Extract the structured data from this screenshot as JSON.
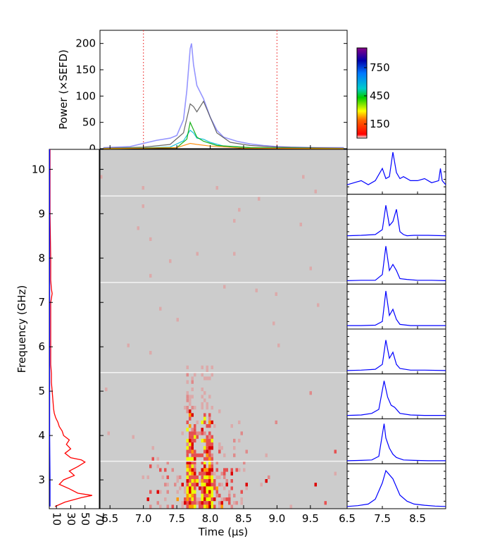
{
  "chart_data": [
    {
      "type": "line",
      "panel": "top-power",
      "ylabel": "Power (×SEFD)",
      "ylim": [
        0,
        225
      ],
      "xlim": [
        6.35,
        10.05
      ],
      "yticks": [
        "0",
        "50",
        "100",
        "150",
        "200"
      ],
      "ytick_values": [
        0,
        50,
        100,
        150,
        200
      ],
      "markers": [
        {
          "x": 7.0,
          "style": "red dotted"
        },
        {
          "x": 9.0,
          "style": "red dotted"
        }
      ],
      "series": [
        {
          "color": "#7b7bff",
          "x": [
            6.4,
            6.6,
            6.8,
            7.0,
            7.2,
            7.4,
            7.5,
            7.6,
            7.65,
            7.7,
            7.72,
            7.75,
            7.8,
            7.9,
            8.0,
            8.1,
            8.2,
            8.4,
            8.6,
            8.8,
            9.0,
            9.2,
            9.6,
            10.0
          ],
          "y": [
            2,
            3,
            4,
            10,
            16,
            20,
            25,
            55,
            110,
            190,
            200,
            160,
            120,
            95,
            60,
            35,
            22,
            14,
            9,
            6,
            4,
            3,
            2,
            2
          ]
        },
        {
          "color": "#555555",
          "x": [
            6.4,
            7.0,
            7.4,
            7.6,
            7.7,
            7.75,
            7.8,
            7.9,
            8.0,
            8.1,
            8.3,
            8.6,
            9.0,
            10.0
          ],
          "y": [
            1,
            3,
            8,
            30,
            85,
            80,
            70,
            90,
            60,
            30,
            12,
            6,
            3,
            1
          ]
        },
        {
          "color": "#00bcd4",
          "x": [
            6.4,
            7.4,
            7.6,
            7.7,
            7.75,
            7.8,
            7.9,
            8.0,
            8.2,
            8.6,
            10.0
          ],
          "y": [
            0,
            3,
            15,
            35,
            30,
            20,
            18,
            12,
            5,
            2,
            0
          ]
        },
        {
          "color": "#00aa00",
          "x": [
            6.4,
            7.5,
            7.65,
            7.7,
            7.8,
            7.9,
            8.1,
            8.6,
            10.0
          ],
          "y": [
            0,
            2,
            18,
            50,
            22,
            14,
            6,
            2,
            0
          ]
        },
        {
          "color": "#ff8800",
          "x": [
            6.4,
            7.5,
            7.7,
            7.8,
            8.0,
            8.5,
            10.0
          ],
          "y": [
            0,
            2,
            10,
            8,
            5,
            1,
            0
          ]
        }
      ]
    },
    {
      "type": "heatmap",
      "panel": "dynamic-spectrum",
      "xlabel": "Time (μs)",
      "ylabel": "Frequency (GHz)",
      "xlim": [
        6.35,
        10.05
      ],
      "ylim": [
        2.35,
        10.45
      ],
      "xticks": [
        "6.5",
        "7.0",
        "7.5",
        "8.0",
        "8.5",
        "9.0",
        "9.5"
      ],
      "xtick_values": [
        6.5,
        7.0,
        7.5,
        8.0,
        8.5,
        9.0,
        9.5
      ],
      "yticks": [
        "3",
        "4",
        "5",
        "6",
        "7",
        "8",
        "9",
        "10"
      ],
      "ytick_values": [
        3,
        4,
        5,
        6,
        7,
        8,
        9,
        10
      ],
      "background": "#cccccc",
      "pulse_components_us": [
        7.72,
        7.97
      ],
      "dead_channels_ghz": [
        9.4,
        7.45,
        5.42,
        3.42
      ],
      "dense_region": {
        "time_us": [
          7.6,
          8.1
        ],
        "freq_ghz": [
          2.4,
          5.4
        ]
      }
    },
    {
      "type": "colorbar",
      "panel": "colorbar",
      "range": [
        0,
        960
      ],
      "ticks": [
        "150",
        "450",
        "750"
      ],
      "tick_values": [
        150,
        450,
        750
      ],
      "colors": [
        "#ff0000",
        "#ffff00",
        "#00cc00",
        "#00ffff",
        "#0000ff",
        "#800080"
      ]
    },
    {
      "type": "line",
      "panel": "left-spectrum",
      "orientation": "vertical",
      "xlim": [
        0,
        70
      ],
      "xticks": [
        "10",
        "30",
        "50",
        "70"
      ],
      "xtick_values": [
        10,
        30,
        50,
        70
      ],
      "ylim": [
        2.35,
        10.45
      ],
      "series": [
        {
          "color": "#ff0000",
          "freq": [
            2.4,
            2.5,
            2.6,
            2.65,
            2.7,
            2.8,
            2.9,
            3.0,
            3.1,
            3.2,
            3.3,
            3.4,
            3.45,
            3.5,
            3.6,
            3.7,
            3.8,
            3.9,
            4.0,
            4.1,
            4.2,
            4.3,
            4.4,
            4.5,
            4.6,
            4.8,
            5.0,
            5.2,
            5.4,
            5.6,
            6.0,
            6.5,
            7.0,
            7.2,
            7.3,
            7.5,
            8.0,
            9.0,
            10.0,
            10.45
          ],
          "power": [
            8,
            22,
            45,
            60,
            40,
            28,
            14,
            20,
            35,
            28,
            40,
            50,
            45,
            30,
            22,
            30,
            24,
            28,
            20,
            18,
            14,
            12,
            9,
            7,
            6,
            5,
            4,
            3,
            3,
            2,
            2,
            2,
            2,
            4,
            3,
            2,
            2,
            1,
            1,
            1
          ]
        },
        {
          "color": "#0000ff",
          "freq": [
            2.4,
            3.0,
            4.0,
            5.0,
            6.0,
            7.0,
            8.0,
            9.0,
            10.0,
            10.45
          ],
          "power": [
            1,
            1,
            0.5,
            0.5,
            0.5,
            0.5,
            0.5,
            0.5,
            0.5,
            0.5
          ]
        }
      ]
    },
    {
      "type": "line",
      "panel": "right-channel-profiles",
      "xticks": [
        "6.5",
        "7.5",
        "8.5"
      ],
      "xtick_values": [
        6.5,
        7.5,
        8.5
      ],
      "xlim": [
        6.5,
        9.3
      ],
      "panels": 8,
      "color": "#0000ff",
      "profiles": [
        {
          "x": [
            6.5,
            6.7,
            6.9,
            7.1,
            7.3,
            7.5,
            7.6,
            7.7,
            7.8,
            7.9,
            8.0,
            8.1,
            8.3,
            8.5,
            8.7,
            8.9,
            9.1,
            9.15,
            9.2,
            9.3
          ],
          "y": [
            0.2,
            0.25,
            0.3,
            0.2,
            0.3,
            0.6,
            0.35,
            0.4,
            1.0,
            0.5,
            0.35,
            0.4,
            0.3,
            0.3,
            0.35,
            0.25,
            0.3,
            0.6,
            0.3,
            0.2
          ]
        },
        {
          "x": [
            6.5,
            6.9,
            7.3,
            7.5,
            7.6,
            7.7,
            7.8,
            7.9,
            8.0,
            8.1,
            8.2,
            8.4,
            8.8,
            9.3
          ],
          "y": [
            0.05,
            0.06,
            0.08,
            0.2,
            0.8,
            0.3,
            0.4,
            0.7,
            0.15,
            0.08,
            0.05,
            0.06,
            0.06,
            0.05
          ]
        },
        {
          "x": [
            6.5,
            6.9,
            7.3,
            7.5,
            7.6,
            7.7,
            7.8,
            7.9,
            8.0,
            8.2,
            8.5,
            8.9,
            9.3
          ],
          "y": [
            0.05,
            0.06,
            0.06,
            0.2,
            0.9,
            0.3,
            0.45,
            0.3,
            0.1,
            0.08,
            0.06,
            0.06,
            0.05
          ]
        },
        {
          "x": [
            6.5,
            6.9,
            7.3,
            7.5,
            7.6,
            7.7,
            7.8,
            7.9,
            8.0,
            8.3,
            8.7,
            9.3
          ],
          "y": [
            0.05,
            0.05,
            0.06,
            0.15,
            0.9,
            0.3,
            0.45,
            0.2,
            0.08,
            0.05,
            0.05,
            0.05
          ]
        },
        {
          "x": [
            6.5,
            6.9,
            7.3,
            7.5,
            7.6,
            7.7,
            7.8,
            7.9,
            8.0,
            8.3,
            8.7,
            9.3
          ],
          "y": [
            0.05,
            0.06,
            0.08,
            0.2,
            0.8,
            0.35,
            0.5,
            0.2,
            0.1,
            0.06,
            0.06,
            0.05
          ]
        },
        {
          "x": [
            6.5,
            6.9,
            7.2,
            7.4,
            7.55,
            7.65,
            7.75,
            7.85,
            8.0,
            8.3,
            8.7,
            9.3
          ],
          "y": [
            0.05,
            0.06,
            0.1,
            0.2,
            0.9,
            0.5,
            0.3,
            0.25,
            0.1,
            0.06,
            0.05,
            0.05
          ]
        },
        {
          "x": [
            6.5,
            6.9,
            7.2,
            7.4,
            7.55,
            7.6,
            7.7,
            7.8,
            7.9,
            8.1,
            8.4,
            8.8,
            9.3
          ],
          "y": [
            0.04,
            0.05,
            0.06,
            0.15,
            0.95,
            0.6,
            0.35,
            0.2,
            0.12,
            0.06,
            0.05,
            0.04,
            0.04
          ]
        },
        {
          "x": [
            6.5,
            6.8,
            7.1,
            7.3,
            7.5,
            7.6,
            7.7,
            7.8,
            7.9,
            8.0,
            8.2,
            8.4,
            8.7,
            9.0,
            9.3
          ],
          "y": [
            0.02,
            0.04,
            0.08,
            0.2,
            0.6,
            0.9,
            0.8,
            0.7,
            0.5,
            0.3,
            0.15,
            0.08,
            0.05,
            0.03,
            0.02
          ]
        }
      ]
    }
  ]
}
